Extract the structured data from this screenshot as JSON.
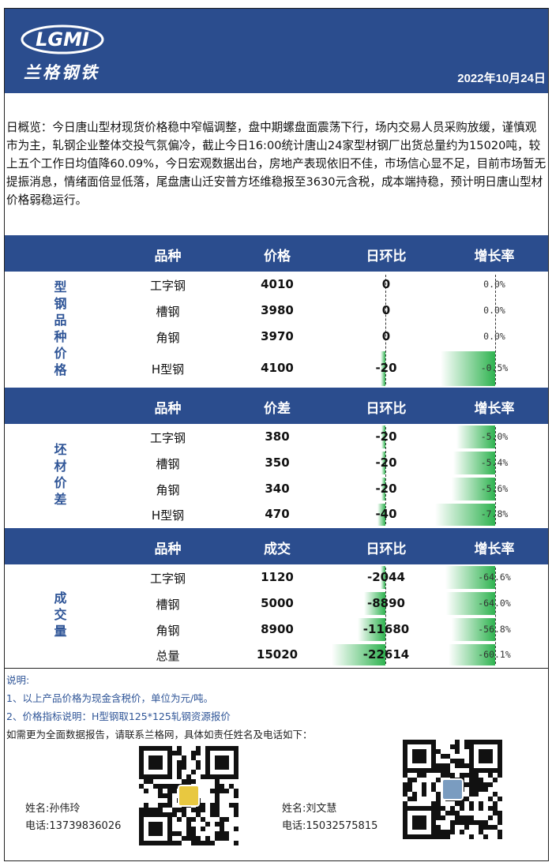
{
  "header": {
    "logo": "LGMI",
    "brand": "兰格钢铁",
    "date": "2022年10月24日"
  },
  "summary": "日概览：今日唐山型材现货价格稳中窄幅调整，盘中期螺盘面震荡下行，场内交易人员采购放缓，谨慎观市为主，轧钢企业整体交投气氛偏冷，截止今日16:00统计唐山24家型材钢厂出货总量约为15020吨，较上五个工作日均值降60.09%，今日宏观数据出台，房地产表现依旧不佳，市场信心显不足，目前市场暂无提振消息，情绪面倍显低落，尾盘唐山迁安普方坯维稳报至3630元含税，成本端持稳，预计明日唐山型材价格弱稳运行。",
  "sections": [
    {
      "label": "型钢品种价格",
      "headers": [
        "品种",
        "价格",
        "日环比",
        "增长率"
      ],
      "rows": [
        {
          "name": "工字钢",
          "value": 4010,
          "change": 0,
          "rate": 0,
          "rate_label": "0.0%"
        },
        {
          "name": "槽钢",
          "value": 3980,
          "change": 0,
          "rate": 0,
          "rate_label": "0.0%"
        },
        {
          "name": "角钢",
          "value": 3970,
          "change": 0,
          "rate": 0,
          "rate_label": "0.0%"
        },
        {
          "name": "H型钢",
          "value": 4100,
          "change": -20,
          "rate": -0.5,
          "rate_label": "-0.5%"
        }
      ]
    },
    {
      "label": "坯材价差",
      "headers": [
        "品种",
        "价差",
        "日环比",
        "增长率"
      ],
      "rows": [
        {
          "name": "工字钢",
          "value": 380,
          "change": -20,
          "rate": -5.0,
          "rate_label": "-5.0%"
        },
        {
          "name": "槽钢",
          "value": 350,
          "change": -20,
          "rate": -5.4,
          "rate_label": "-5.4%"
        },
        {
          "name": "角钢",
          "value": 340,
          "change": -20,
          "rate": -5.6,
          "rate_label": "-5.6%"
        },
        {
          "name": "H型钢",
          "value": 470,
          "change": -40,
          "rate": -7.8,
          "rate_label": "-7.8%"
        }
      ]
    },
    {
      "label": "成交量",
      "headers": [
        "品种",
        "成交",
        "日环比",
        "增长率"
      ],
      "rows": [
        {
          "name": "工字钢",
          "value": 1120,
          "change": -2044,
          "rate": -64.6,
          "rate_label": "-64.6%"
        },
        {
          "name": "槽钢",
          "value": 5000,
          "change": -8890,
          "rate": -64.0,
          "rate_label": "-64.0%"
        },
        {
          "name": "角钢",
          "value": 8900,
          "change": -11680,
          "rate": -56.8,
          "rate_label": "-56.8%"
        },
        {
          "name": "总量",
          "value": 15020,
          "change": -22614,
          "rate": -60.1,
          "rate_label": "-60.1%"
        }
      ]
    }
  ],
  "notes": {
    "title": "说明:",
    "lines": [
      "1、以上产品价格为现金含税价，单位为元/吨。",
      "2、价格指标说明：H型钢取125*125轧钢资源报价",
      "如需更为全面数据报告，请联系兰格网，具体如责任姓名及电话如下："
    ]
  },
  "contacts": [
    {
      "name": "姓名:孙伟玲",
      "phone": "电话:13739836026"
    },
    {
      "name": "姓名:刘文慧",
      "phone": "电话:15032575815"
    }
  ]
}
